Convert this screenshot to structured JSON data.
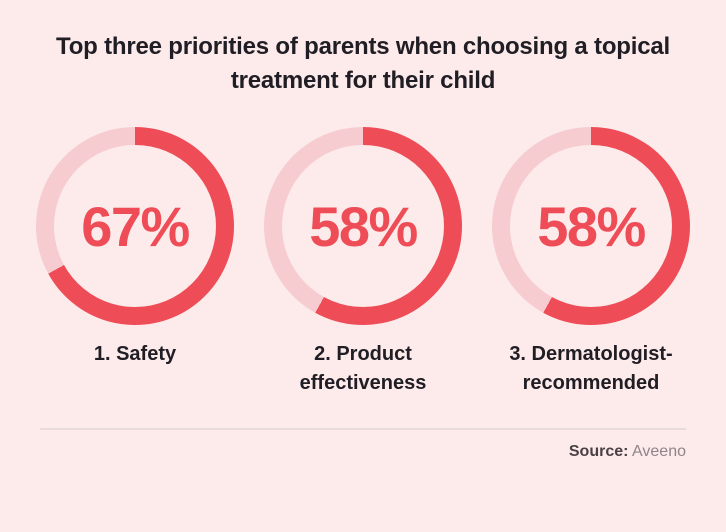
{
  "header": {
    "title": "Top three priorities of parents when choosing a topical treatment for their child"
  },
  "chart_data": {
    "type": "pie",
    "variant": "donut-trio",
    "units": "%",
    "start_angle": "top",
    "direction": "clockwise",
    "title": "Top three priorities of parents when choosing a topical treatment for their child",
    "legend_position": "none",
    "items": [
      {
        "label": "1. Safety",
        "value": 67,
        "display": "67%"
      },
      {
        "label": "2. Product effectiveness",
        "value": 58,
        "display": "58%"
      },
      {
        "label": "3. Dermatologist-recommended",
        "value": 58,
        "display": "58%"
      }
    ]
  },
  "footer": {
    "source_label": "Source:",
    "source_value": "Aveeno"
  },
  "colors": {
    "background": "#fcebea",
    "accent_red": "#ee4c56",
    "ring_track": "#f6ccd1",
    "title_text": "#201d24",
    "source_label_text": "#4a4145",
    "source_value_text": "#8e8489",
    "divider": "#e7dbdb"
  }
}
